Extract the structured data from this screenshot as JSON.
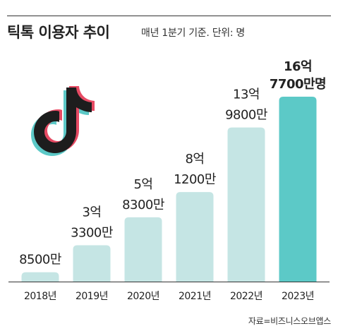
{
  "header": {
    "title": "틱톡 이용자 추이",
    "subtitle": "매년 1분기 기준. 단위: 명"
  },
  "source": "자료=비즈니스오브앱스",
  "colors": {
    "bar": "#c5e5e4",
    "bar_highlight": "#5cc9c7",
    "axis": "#333333",
    "text": "#222222"
  },
  "chart_data": {
    "type": "bar",
    "title": "틱톡 이용자 추이",
    "xlabel": "",
    "ylabel": "",
    "categories": [
      "2018년",
      "2019년",
      "2020년",
      "2021년",
      "2022년",
      "2023년"
    ],
    "values": [
      85000000,
      330000000,
      583000000,
      812000000,
      1398000000,
      1677000000
    ],
    "value_labels": [
      [
        "8500만"
      ],
      [
        "3억",
        "3300만"
      ],
      [
        "5억",
        "8300만"
      ],
      [
        "8억",
        "1200만"
      ],
      [
        "13억",
        "9800만"
      ],
      [
        "16억",
        "7700만명"
      ]
    ],
    "highlight_index": 5,
    "ylim": [
      0,
      1677000000
    ]
  }
}
